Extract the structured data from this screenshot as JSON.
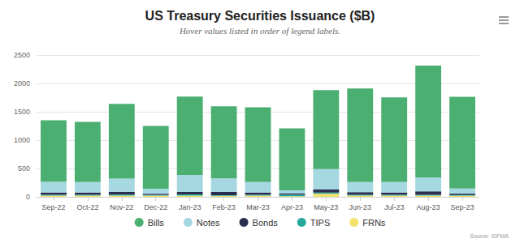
{
  "chart_data": {
    "type": "bar",
    "title": "US Treasury Securities Issuance ($B)",
    "subtitle": "Hover values listed in order of legend labels.",
    "source": "Source: SIFMA",
    "categories": [
      "Sep-22",
      "Oct-22",
      "Nov-22",
      "Dec-22",
      "Jan-23",
      "Feb-23",
      "Mar-23",
      "Apr-23",
      "May-23",
      "Jun-23",
      "Jul-23",
      "Aug-23",
      "Sep-23"
    ],
    "series": [
      {
        "name": "Bills",
        "color": "#4caf72",
        "values": [
          1085,
          1063,
          1315,
          1106,
          1380,
          1270,
          1320,
          1092,
          1392,
          1650,
          1495,
          1975,
          1620
        ]
      },
      {
        "name": "Notes",
        "color": "#a6d8e2",
        "values": [
          190,
          185,
          235,
          90,
          300,
          240,
          185,
          55,
          360,
          180,
          185,
          245,
          90
        ]
      },
      {
        "name": "Bonds",
        "color": "#2a2f50",
        "values": [
          40,
          40,
          50,
          22,
          45,
          55,
          40,
          20,
          55,
          45,
          40,
          60,
          25
        ]
      },
      {
        "name": "TIPS",
        "color": "#26a99b",
        "values": [
          15,
          12,
          18,
          12,
          20,
          12,
          15,
          30,
          20,
          15,
          12,
          15,
          10
        ]
      },
      {
        "name": "FRNs",
        "color": "#f4e36a",
        "values": [
          20,
          22,
          20,
          20,
          22,
          18,
          20,
          10,
          55,
          22,
          22,
          20,
          20
        ]
      }
    ],
    "ylim": [
      0,
      2500
    ],
    "yticks": [
      0,
      500,
      1000,
      1500,
      2000,
      2500
    ],
    "stacked": true,
    "grid": true,
    "legend": "bottom"
  }
}
